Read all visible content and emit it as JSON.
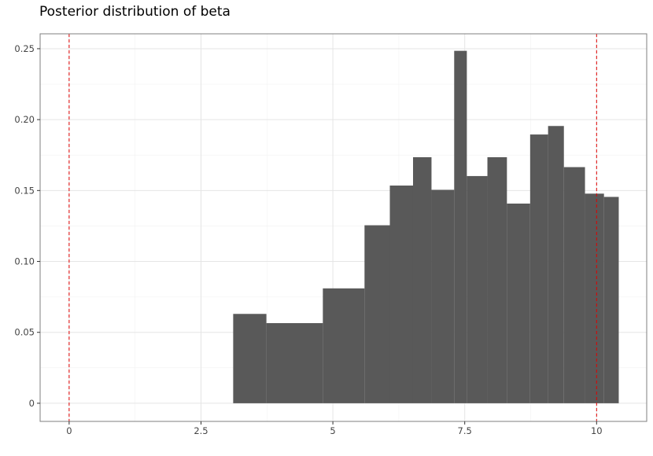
{
  "chart_data": {
    "type": "bar",
    "title": "Posterior distribution of beta",
    "xlabel": "",
    "ylabel": "",
    "xlim": [
      -0.55,
      10.95
    ],
    "ylim": [
      -0.0128,
      0.2605
    ],
    "x_ticks": [
      0,
      2.5,
      5,
      7.5,
      10
    ],
    "x_tick_labels": [
      "0",
      "2.5",
      "5",
      "7.5",
      "10"
    ],
    "y_ticks": [
      0,
      0.05,
      0.1,
      0.15,
      0.2,
      0.25
    ],
    "y_tick_labels": [
      "0",
      "0.05",
      "0.10",
      "0.15",
      "0.20",
      "0.25"
    ],
    "grid": true,
    "bar_color": "#595959",
    "reference_lines": {
      "values": [
        0,
        10
      ],
      "color": "#e00000",
      "style": "dashed"
    },
    "bins": [
      {
        "x0": 3.11,
        "x1": 3.74,
        "value": 0.063
      },
      {
        "x0": 3.74,
        "x1": 4.81,
        "value": 0.0565
      },
      {
        "x0": 4.81,
        "x1": 5.6,
        "value": 0.081
      },
      {
        "x0": 5.6,
        "x1": 6.08,
        "value": 0.1255
      },
      {
        "x0": 6.08,
        "x1": 6.52,
        "value": 0.1535
      },
      {
        "x0": 6.52,
        "x1": 6.87,
        "value": 0.1735
      },
      {
        "x0": 6.87,
        "x1": 7.3,
        "value": 0.1505
      },
      {
        "x0": 7.3,
        "x1": 7.54,
        "value": 0.2485
      },
      {
        "x0": 7.54,
        "x1": 7.93,
        "value": 0.1602
      },
      {
        "x0": 7.93,
        "x1": 8.3,
        "value": 0.1735
      },
      {
        "x0": 8.3,
        "x1": 8.74,
        "value": 0.1408
      },
      {
        "x0": 8.74,
        "x1": 9.08,
        "value": 0.1895
      },
      {
        "x0": 9.08,
        "x1": 9.38,
        "value": 0.1955
      },
      {
        "x0": 9.38,
        "x1": 9.78,
        "value": 0.1665
      },
      {
        "x0": 9.78,
        "x1": 10.14,
        "value": 0.1478
      },
      {
        "x0": 10.14,
        "x1": 10.42,
        "value": 0.1455
      }
    ]
  }
}
